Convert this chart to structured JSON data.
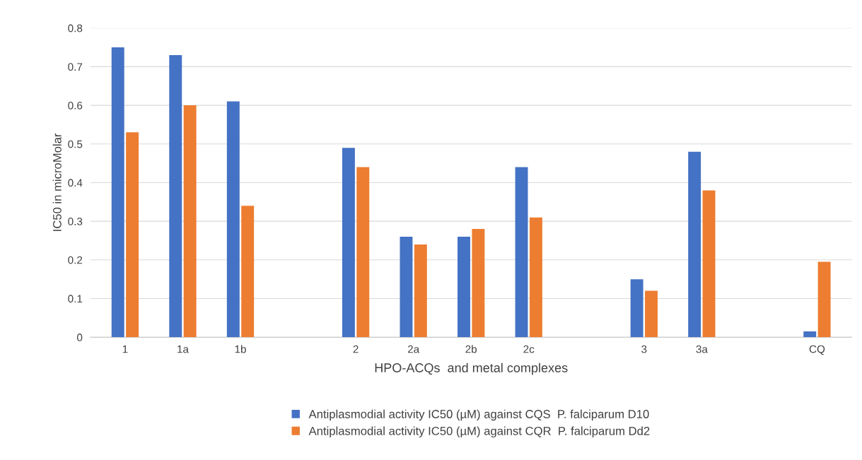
{
  "chart_data": {
    "type": "bar",
    "xlabel": "HPO-ACQs  and metal complexes",
    "ylabel": "IC50 in microMolar",
    "categories": [
      "1",
      "1a",
      "1b",
      null,
      "2",
      "2a",
      "2b",
      "2c",
      null,
      "3",
      "3a",
      null,
      "CQ"
    ],
    "series": [
      {
        "name": "Antiplasmodial activity IC50 (µM) against CQS  P. falciparum D10",
        "color": "#4472c4",
        "values": [
          0.75,
          0.73,
          0.61,
          null,
          0.49,
          0.26,
          0.26,
          0.44,
          null,
          0.15,
          0.48,
          null,
          0.015
        ]
      },
      {
        "name": "Antiplasmodial activity IC50 (µM) against CQR  P. falciparum Dd2",
        "color": "#ed7d31",
        "values": [
          0.53,
          0.6,
          0.34,
          null,
          0.44,
          0.24,
          0.28,
          0.31,
          null,
          0.12,
          0.38,
          null,
          0.195
        ]
      }
    ],
    "ylim": [
      0,
      0.8
    ],
    "yticks": [
      0,
      0.1,
      0.2,
      0.3,
      0.4,
      0.5,
      0.6,
      0.7,
      0.8
    ],
    "grid": "y",
    "legend": "bottom"
  }
}
